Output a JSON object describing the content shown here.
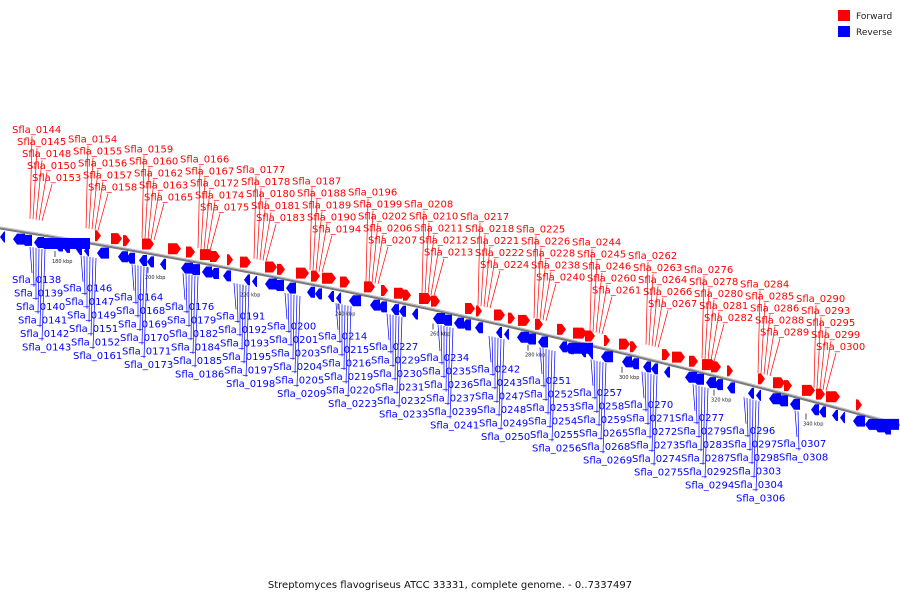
{
  "caption": "Streptomyces flavogriseus ATCC 33331, complete genome. - 0..7337497",
  "legend": [
    {
      "label": "Forward",
      "color": "#ff0000"
    },
    {
      "label": "Reverse",
      "color": "#0000ff"
    }
  ],
  "colors": {
    "forward": "#ff0000",
    "reverse": "#0000ff",
    "backbone": "#808080"
  },
  "ticks": [
    "180 kbp",
    "200 kbp",
    "220 kbp",
    "240 kbp",
    "260 kbp",
    "280 kbp",
    "300 kbp",
    "320 kbp",
    "340 kbp"
  ],
  "forward_labels": [
    "Sfla_0144",
    "Sfla_0145",
    "Sfla_0148",
    "Sfla_0150",
    "Sfla_0153",
    "Sfla_0154",
    "Sfla_0155",
    "Sfla_0156",
    "Sfla_0157",
    "Sfla_0158",
    "Sfla_0159",
    "Sfla_0160",
    "Sfla_0162",
    "Sfla_0163",
    "Sfla_0165",
    "Sfla_0166",
    "Sfla_0167",
    "Sfla_0172",
    "Sfla_0174",
    "Sfla_0175",
    "Sfla_0177",
    "Sfla_0178",
    "Sfla_0180",
    "Sfla_0181",
    "Sfla_0183",
    "Sfla_0187",
    "Sfla_0188",
    "Sfla_0189",
    "Sfla_0190",
    "Sfla_0194",
    "Sfla_0196",
    "Sfla_0199",
    "Sfla_0202",
    "Sfla_0206",
    "Sfla_0207",
    "Sfla_0208",
    "Sfla_0210",
    "Sfla_0211",
    "Sfla_0212",
    "Sfla_0213",
    "Sfla_0217",
    "Sfla_0218",
    "Sfla_0221",
    "Sfla_0222",
    "Sfla_0224",
    "Sfla_0225",
    "Sfla_0226",
    "Sfla_0228",
    "Sfla_0238",
    "Sfla_0240",
    "Sfla_0244",
    "Sfla_0245",
    "Sfla_0246",
    "Sfla_0260",
    "Sfla_0261",
    "Sfla_0262",
    "Sfla_0263",
    "Sfla_0264",
    "Sfla_0266",
    "Sfla_0267",
    "Sfla_0276",
    "Sfla_0278",
    "Sfla_0280",
    "Sfla_0281",
    "Sfla_0282",
    "Sfla_0284",
    "Sfla_0285",
    "Sfla_0286",
    "Sfla_0288",
    "Sfla_0289",
    "Sfla_0290",
    "Sfla_0293",
    "Sfla_0295",
    "Sfla_0299",
    "Sfla_0300"
  ],
  "reverse_labels": [
    "Sfla_0138",
    "Sfla_0139",
    "Sfla_0140",
    "Sfla_0141",
    "Sfla_0142",
    "Sfla_0143",
    "Sfla_0146",
    "Sfla_0147",
    "Sfla_0149",
    "Sfla_0151",
    "Sfla_0152",
    "Sfla_0161",
    "Sfla_0164",
    "Sfla_0168",
    "Sfla_0169",
    "Sfla_0170",
    "Sfla_0171",
    "Sfla_0173",
    "Sfla_0176",
    "Sfla_0179",
    "Sfla_0182",
    "Sfla_0184",
    "Sfla_0185",
    "Sfla_0186",
    "Sfla_0191",
    "Sfla_0192",
    "Sfla_0193",
    "Sfla_0195",
    "Sfla_0197",
    "Sfla_0198",
    "Sfla_0200",
    "Sfla_0201",
    "Sfla_0203",
    "Sfla_0204",
    "Sfla_0205",
    "Sfla_0209",
    "Sfla_0214",
    "Sfla_0215",
    "Sfla_0216",
    "Sfla_0219",
    "Sfla_0220",
    "Sfla_0223",
    "Sfla_0227",
    "Sfla_0229",
    "Sfla_0230",
    "Sfla_0231",
    "Sfla_0232",
    "Sfla_0233",
    "Sfla_0234",
    "Sfla_0235",
    "Sfla_0236",
    "Sfla_0237",
    "Sfla_0239",
    "Sfla_0241",
    "Sfla_0242",
    "Sfla_0243",
    "Sfla_0247",
    "Sfla_0248",
    "Sfla_0249",
    "Sfla_0250",
    "Sfla_0251",
    "Sfla_0252",
    "Sfla_0253",
    "Sfla_0254",
    "Sfla_0255",
    "Sfla_0256",
    "Sfla_0257",
    "Sfla_0258",
    "Sfla_0259",
    "Sfla_0265",
    "Sfla_0268",
    "Sfla_0269",
    "Sfla_0270",
    "Sfla_0271",
    "Sfla_0272",
    "Sfla_0273",
    "Sfla_0274",
    "Sfla_0275",
    "Sfla_0277",
    "Sfla_0279",
    "Sfla_0283",
    "Sfla_0287",
    "Sfla_0292",
    "Sfla_0294",
    "Sfla_0296",
    "Sfla_0297",
    "Sfla_0298",
    "Sfla_0303",
    "Sfla_0304",
    "Sfla_0306",
    "Sfla_0307",
    "Sfla_0308"
  ]
}
